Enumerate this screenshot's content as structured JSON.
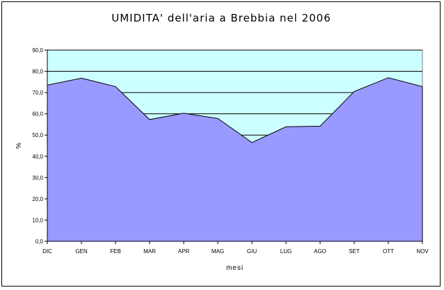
{
  "chart_data": {
    "type": "area",
    "title": "UMIDITA' dell'aria a Brebbia nel 2006",
    "xlabel": "mesi",
    "ylabel": "%",
    "categories": [
      "DIC",
      "GEN",
      "FEB",
      "MAR",
      "APR",
      "MAG",
      "GIU",
      "LUG",
      "AGO",
      "SET",
      "OTT",
      "NOV"
    ],
    "series": [
      {
        "values": [
          73.5,
          76.8,
          72.8,
          57.3,
          60.3,
          57.8,
          46.5,
          53.9,
          54.2,
          70.5,
          77.0,
          72.8
        ]
      }
    ],
    "ylim": [
      0,
      90
    ],
    "yticks": [
      "0,0",
      "10,0",
      "20,0",
      "30,0",
      "40,0",
      "50,0",
      "60,0",
      "70,0",
      "80,0",
      "90,0"
    ],
    "grid": true,
    "colors": {
      "plot_background": "#ccffff",
      "area_fill": "#9999ff",
      "area_stroke": "#000000",
      "gridline": "#000000"
    }
  }
}
